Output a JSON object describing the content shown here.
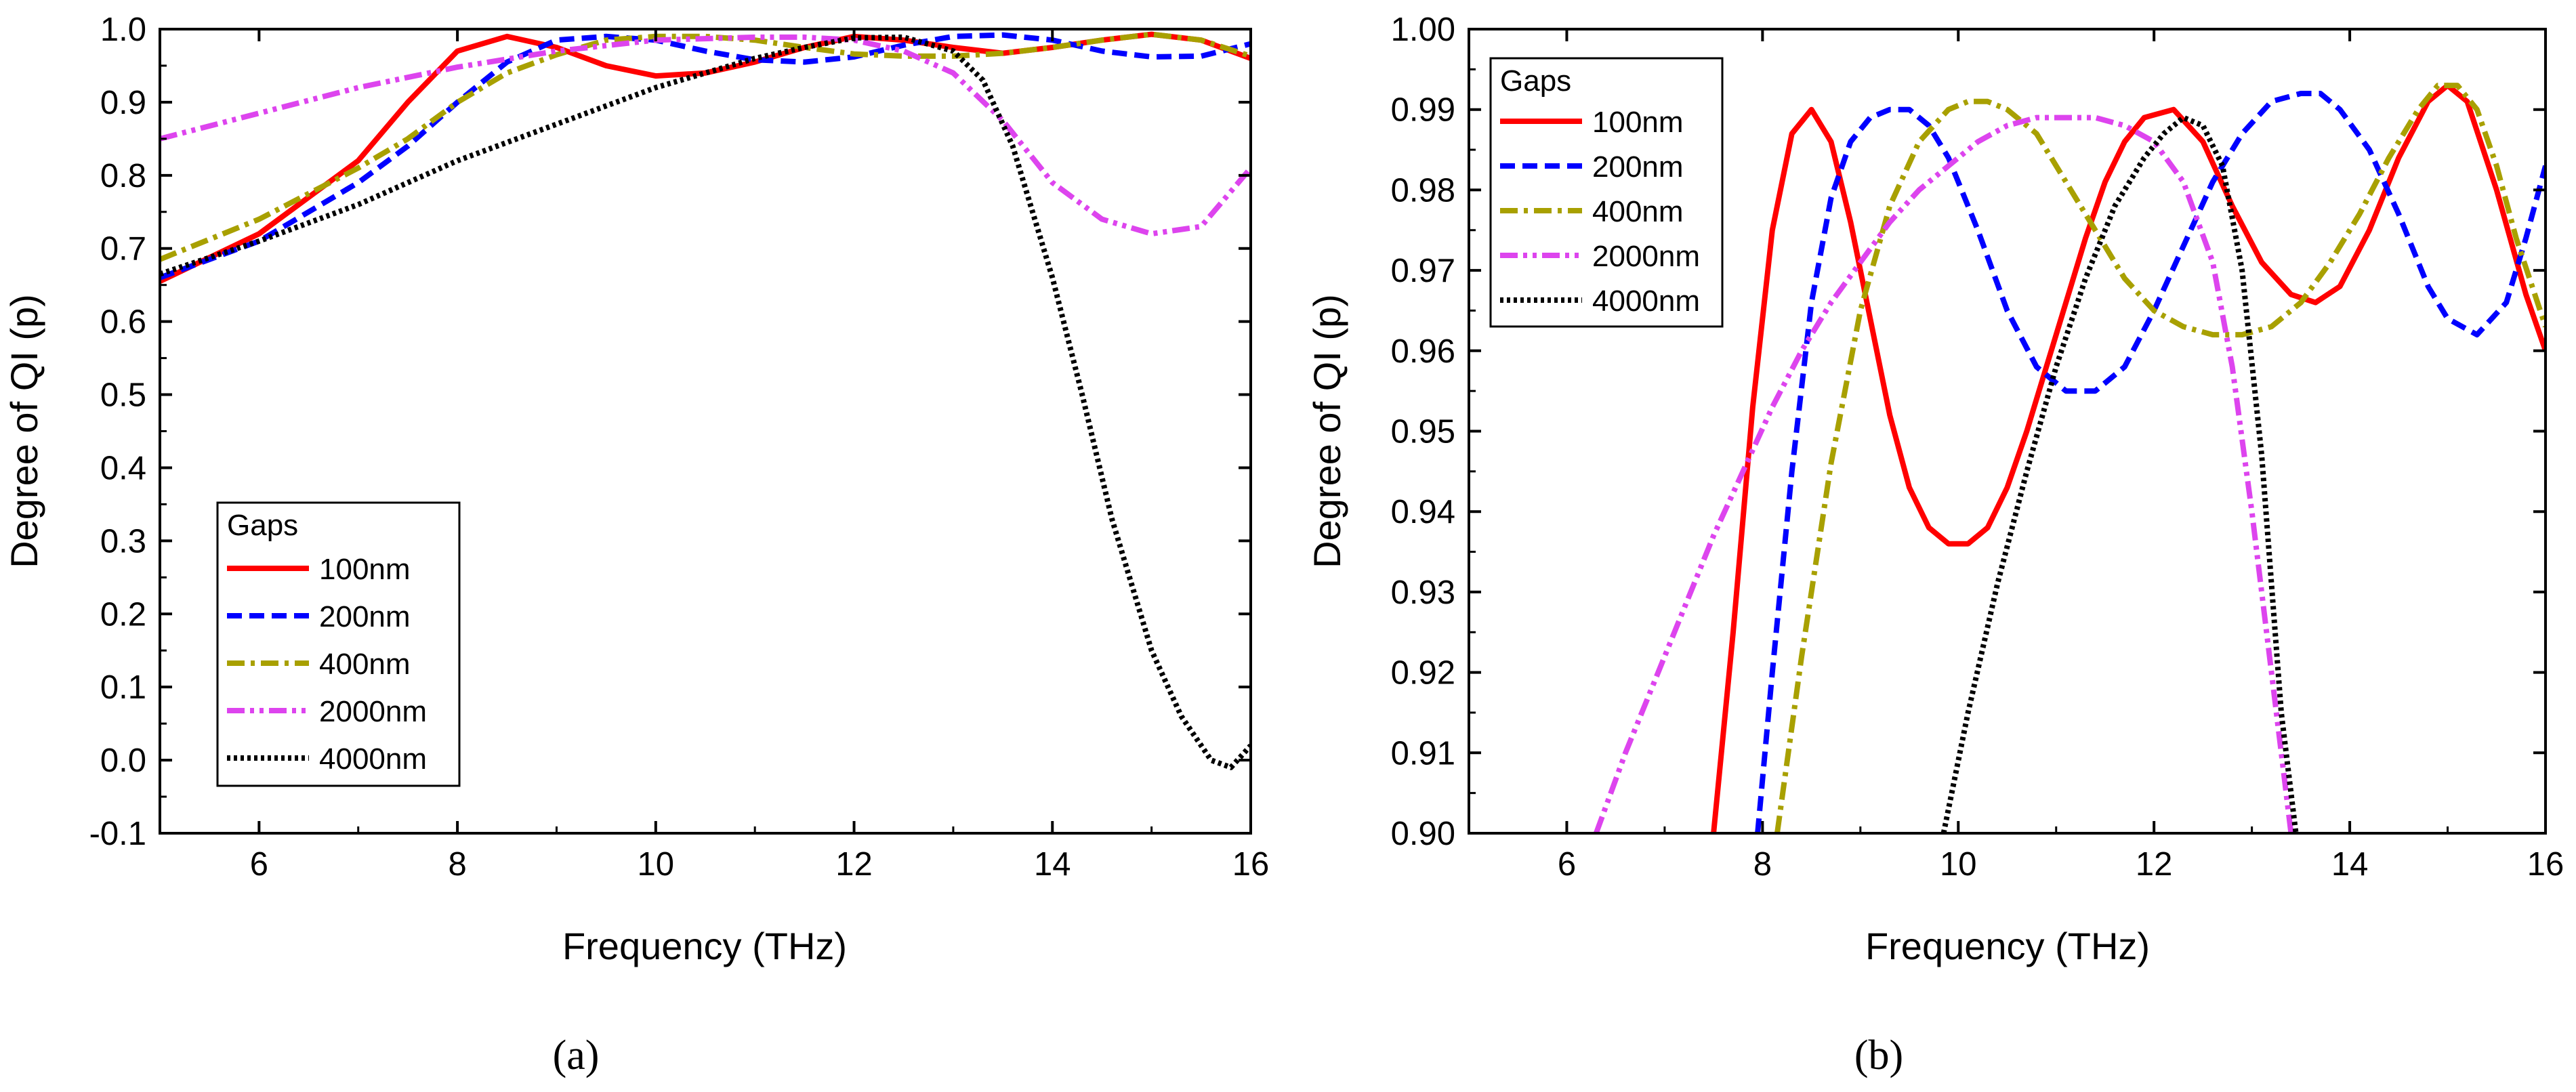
{
  "chart_data": [
    {
      "type": "line",
      "panel_label": "(a)",
      "xlabel": "Frequency (THz)",
      "ylabel": "Degree of QI (p)",
      "xlim": [
        5,
        16
      ],
      "ylim": [
        -0.1,
        1.0
      ],
      "xticks": [
        6,
        8,
        10,
        12,
        14,
        16
      ],
      "xtick_labels": [
        "6",
        "8",
        "10",
        "12",
        "14",
        "16"
      ],
      "yticks": [
        -0.1,
        0.0,
        0.1,
        0.2,
        0.3,
        0.4,
        0.5,
        0.6,
        0.7,
        0.8,
        0.9,
        1.0
      ],
      "ytick_labels": [
        "-0.1",
        "0.0",
        "0.1",
        "0.2",
        "0.3",
        "0.4",
        "0.5",
        "0.6",
        "0.7",
        "0.8",
        "0.9",
        "1.0"
      ],
      "legend_title": "Gaps",
      "legend_position": "lower-left",
      "series": [
        {
          "name": "100nm",
          "color": "#ff0000",
          "dash": "solid",
          "x": [
            5,
            6,
            7,
            7.5,
            8,
            8.5,
            9,
            9.5,
            10,
            10.5,
            11,
            11.5,
            12,
            12.5,
            13,
            13.5,
            14,
            14.5,
            15,
            15.5,
            16
          ],
          "y": [
            0.655,
            0.72,
            0.82,
            0.9,
            0.97,
            0.99,
            0.975,
            0.95,
            0.936,
            0.94,
            0.955,
            0.975,
            0.99,
            0.985,
            0.975,
            0.967,
            0.975,
            0.985,
            0.993,
            0.985,
            0.96
          ]
        },
        {
          "name": "200nm",
          "color": "#0000ff",
          "dash": "dashed",
          "x": [
            5,
            6,
            7,
            7.5,
            8,
            8.5,
            9,
            9.5,
            10,
            10.5,
            11,
            11.5,
            12,
            12.5,
            13,
            13.5,
            14,
            14.5,
            15,
            15.5,
            16
          ],
          "y": [
            0.66,
            0.71,
            0.79,
            0.84,
            0.9,
            0.955,
            0.985,
            0.99,
            0.985,
            0.97,
            0.958,
            0.955,
            0.962,
            0.978,
            0.99,
            0.992,
            0.985,
            0.97,
            0.962,
            0.963,
            0.98
          ]
        },
        {
          "name": "400nm",
          "color": "#a8a000",
          "dash": "dashdot",
          "x": [
            5,
            6,
            7,
            7.5,
            8,
            8.5,
            9,
            9.5,
            10,
            10.5,
            11,
            11.5,
            12,
            12.5,
            13,
            13.5,
            14,
            14.5,
            15,
            15.5,
            16
          ],
          "y": [
            0.685,
            0.74,
            0.81,
            0.85,
            0.9,
            0.94,
            0.965,
            0.985,
            0.99,
            0.99,
            0.985,
            0.975,
            0.966,
            0.963,
            0.963,
            0.967,
            0.975,
            0.985,
            0.993,
            0.985,
            0.963
          ]
        },
        {
          "name": "2000nm",
          "color": "#dd44ee",
          "dash": "dashdotdot",
          "x": [
            5,
            6,
            7,
            8,
            9,
            10,
            11,
            11.5,
            12,
            12.5,
            13,
            13.5,
            14,
            14.5,
            15,
            15.5,
            16
          ],
          "y": [
            0.85,
            0.885,
            0.92,
            0.948,
            0.97,
            0.985,
            0.989,
            0.989,
            0.985,
            0.97,
            0.94,
            0.875,
            0.79,
            0.74,
            0.72,
            0.73,
            0.81
          ]
        },
        {
          "name": "4000nm",
          "color": "#000000",
          "dash": "dotted",
          "x": [
            5,
            6,
            7,
            8,
            9,
            10,
            11,
            11.5,
            12,
            12.5,
            13,
            13.3,
            13.6,
            14,
            14.3,
            14.6,
            15,
            15.3,
            15.6,
            15.8,
            16
          ],
          "y": [
            0.665,
            0.71,
            0.76,
            0.82,
            0.87,
            0.92,
            0.96,
            0.975,
            0.988,
            0.989,
            0.97,
            0.93,
            0.84,
            0.66,
            0.5,
            0.33,
            0.15,
            0.06,
            0.0,
            -0.01,
            0.02
          ]
        }
      ]
    },
    {
      "type": "line",
      "panel_label": "(b)",
      "xlabel": "Frequency (THz)",
      "ylabel": "Degree of QI (p)",
      "xlim": [
        5,
        16
      ],
      "ylim": [
        0.9,
        1.0
      ],
      "xticks": [
        6,
        8,
        10,
        12,
        14,
        16
      ],
      "xtick_labels": [
        "6",
        "8",
        "10",
        "12",
        "14",
        "16"
      ],
      "yticks": [
        0.9,
        0.91,
        0.92,
        0.93,
        0.94,
        0.95,
        0.96,
        0.97,
        0.98,
        0.99,
        1.0
      ],
      "ytick_labels": [
        "0.90",
        "0.91",
        "0.92",
        "0.93",
        "0.94",
        "0.95",
        "0.96",
        "0.97",
        "0.98",
        "0.99",
        "1.00"
      ],
      "legend_title": "Gaps",
      "legend_position": "top-left",
      "series": [
        {
          "name": "100nm",
          "color": "#ff0000",
          "dash": "solid",
          "x": [
            7.5,
            7.7,
            7.9,
            8.1,
            8.3,
            8.5,
            8.7,
            8.9,
            9.1,
            9.3,
            9.5,
            9.7,
            9.9,
            10.1,
            10.3,
            10.5,
            10.7,
            10.9,
            11.1,
            11.3,
            11.5,
            11.7,
            11.9,
            12.2,
            12.5,
            12.8,
            13.1,
            13.4,
            13.65,
            13.9,
            14.2,
            14.5,
            14.8,
            15.0,
            15.2,
            15.5,
            15.8,
            16.0
          ],
          "y": [
            0.9,
            0.925,
            0.953,
            0.975,
            0.987,
            0.99,
            0.986,
            0.976,
            0.964,
            0.952,
            0.943,
            0.938,
            0.936,
            0.936,
            0.938,
            0.943,
            0.95,
            0.958,
            0.966,
            0.974,
            0.981,
            0.986,
            0.989,
            0.99,
            0.986,
            0.978,
            0.971,
            0.967,
            0.966,
            0.968,
            0.975,
            0.984,
            0.991,
            0.993,
            0.991,
            0.98,
            0.967,
            0.96
          ]
        },
        {
          "name": "200nm",
          "color": "#0000ff",
          "dash": "dashed",
          "x": [
            7.95,
            8.1,
            8.3,
            8.5,
            8.7,
            8.9,
            9.1,
            9.3,
            9.5,
            9.7,
            9.9,
            10.2,
            10.5,
            10.8,
            11.1,
            11.4,
            11.7,
            12.0,
            12.3,
            12.6,
            12.9,
            13.2,
            13.5,
            13.7,
            13.9,
            14.2,
            14.5,
            14.8,
            15.0,
            15.3,
            15.6,
            15.8,
            16.0
          ],
          "y": [
            0.9,
            0.92,
            0.945,
            0.966,
            0.979,
            0.986,
            0.989,
            0.99,
            0.99,
            0.988,
            0.984,
            0.975,
            0.965,
            0.958,
            0.955,
            0.955,
            0.958,
            0.965,
            0.973,
            0.981,
            0.987,
            0.991,
            0.992,
            0.992,
            0.99,
            0.985,
            0.977,
            0.968,
            0.964,
            0.962,
            0.966,
            0.974,
            0.983
          ]
        },
        {
          "name": "400nm",
          "color": "#a8a000",
          "dash": "dashdot",
          "x": [
            8.15,
            8.4,
            8.7,
            9.0,
            9.3,
            9.6,
            9.9,
            10.1,
            10.3,
            10.5,
            10.8,
            11.1,
            11.4,
            11.7,
            12.0,
            12.3,
            12.6,
            12.9,
            13.2,
            13.5,
            13.8,
            14.1,
            14.4,
            14.7,
            14.9,
            15.1,
            15.3,
            15.5,
            15.7,
            16.0
          ],
          "y": [
            0.9,
            0.922,
            0.946,
            0.965,
            0.978,
            0.986,
            0.99,
            0.991,
            0.991,
            0.99,
            0.987,
            0.981,
            0.975,
            0.969,
            0.965,
            0.963,
            0.962,
            0.962,
            0.963,
            0.966,
            0.971,
            0.977,
            0.984,
            0.99,
            0.993,
            0.993,
            0.99,
            0.983,
            0.974,
            0.963
          ]
        },
        {
          "name": "2000nm",
          "color": "#dd44ee",
          "dash": "dashdotdot",
          "x": [
            6.3,
            6.6,
            6.9,
            7.2,
            7.5,
            7.8,
            8.1,
            8.4,
            8.7,
            9.0,
            9.3,
            9.6,
            9.9,
            10.2,
            10.5,
            10.8,
            11.1,
            11.4,
            11.7,
            12.0,
            12.3,
            12.6,
            12.8,
            13.0,
            13.15,
            13.3,
            13.4
          ],
          "y": [
            0.9,
            0.91,
            0.919,
            0.928,
            0.937,
            0.945,
            0.953,
            0.96,
            0.966,
            0.971,
            0.976,
            0.98,
            0.983,
            0.986,
            0.988,
            0.989,
            0.989,
            0.989,
            0.988,
            0.986,
            0.981,
            0.971,
            0.958,
            0.94,
            0.925,
            0.91,
            0.9
          ]
        },
        {
          "name": "4000nm",
          "color": "#000000",
          "dash": "dotted",
          "x": [
            9.85,
            10.1,
            10.4,
            10.7,
            11.0,
            11.3,
            11.6,
            11.9,
            12.1,
            12.3,
            12.5,
            12.7,
            12.9,
            13.1,
            13.3,
            13.45
          ],
          "y": [
            0.9,
            0.915,
            0.931,
            0.945,
            0.958,
            0.969,
            0.978,
            0.984,
            0.987,
            0.989,
            0.988,
            0.983,
            0.97,
            0.947,
            0.915,
            0.9
          ]
        }
      ]
    }
  ]
}
